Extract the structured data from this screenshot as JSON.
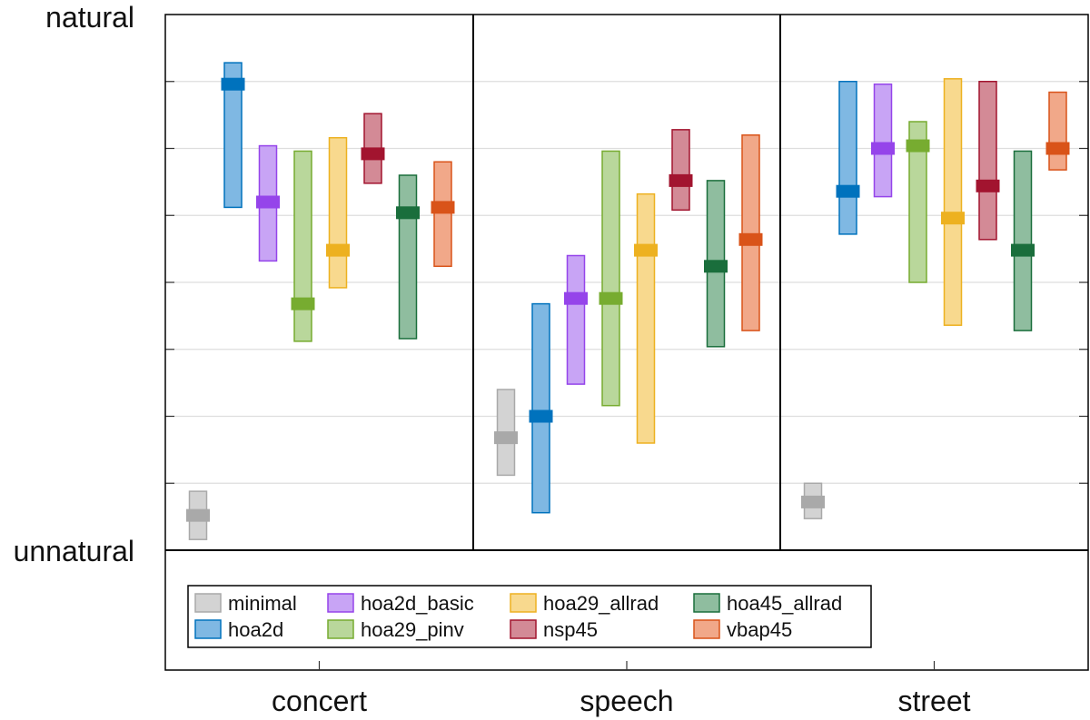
{
  "chart_data": {
    "type": "bar",
    "chart_style": "range-with-median",
    "ylim": [
      0,
      1
    ],
    "ytick_count": 8,
    "y_top_label": "natural",
    "y_bottom_label": "unnatural",
    "categories": [
      "concert",
      "speech",
      "street"
    ],
    "series": [
      {
        "name": "minimal",
        "fill": "#d3d3d3",
        "stroke": "#a9a9a9",
        "median_color": "#a9a9a9",
        "data": [
          {
            "low": 0.02,
            "high": 0.11,
            "median": 0.065
          },
          {
            "low": 0.14,
            "high": 0.3,
            "median": 0.21
          },
          {
            "low": 0.059,
            "high": 0.125,
            "median": 0.09
          }
        ]
      },
      {
        "name": "hoa2d",
        "fill": "#7fb8e3",
        "stroke": "#0072bd",
        "median_color": "#0072bd",
        "data": [
          {
            "low": 0.64,
            "high": 0.91,
            "median": 0.87
          },
          {
            "low": 0.07,
            "high": 0.46,
            "median": 0.25
          },
          {
            "low": 0.59,
            "high": 0.875,
            "median": 0.67
          }
        ]
      },
      {
        "name": "hoa2d_basic",
        "fill": "#c8a4f5",
        "stroke": "#9544ea",
        "median_color": "#9544ea",
        "data": [
          {
            "low": 0.54,
            "high": 0.755,
            "median": 0.65
          },
          {
            "low": 0.31,
            "high": 0.55,
            "median": 0.47
          },
          {
            "low": 0.66,
            "high": 0.87,
            "median": 0.75
          }
        ]
      },
      {
        "name": "hoa29_pinv",
        "fill": "#b9d79b",
        "stroke": "#77ac30",
        "median_color": "#77ac30",
        "data": [
          {
            "low": 0.39,
            "high": 0.745,
            "median": 0.46
          },
          {
            "low": 0.27,
            "high": 0.745,
            "median": 0.47
          },
          {
            "low": 0.5,
            "high": 0.8,
            "median": 0.755
          }
        ]
      },
      {
        "name": "hoa29_allrad",
        "fill": "#f8d98e",
        "stroke": "#edb120",
        "median_color": "#edb120",
        "data": [
          {
            "low": 0.49,
            "high": 0.77,
            "median": 0.56
          },
          {
            "low": 0.2,
            "high": 0.665,
            "median": 0.56
          },
          {
            "low": 0.42,
            "high": 0.88,
            "median": 0.62
          }
        ]
      },
      {
        "name": "nsp45",
        "fill": "#d38a96",
        "stroke": "#a2142f",
        "median_color": "#a2142f",
        "data": [
          {
            "low": 0.685,
            "high": 0.815,
            "median": 0.74
          },
          {
            "low": 0.635,
            "high": 0.785,
            "median": 0.69
          },
          {
            "low": 0.58,
            "high": 0.875,
            "median": 0.68
          }
        ]
      },
      {
        "name": "hoa45_allrad",
        "fill": "#8fbd9f",
        "stroke": "#1a6e3c",
        "median_color": "#1a6e3c",
        "data": [
          {
            "low": 0.395,
            "high": 0.7,
            "median": 0.63
          },
          {
            "low": 0.38,
            "high": 0.69,
            "median": 0.53
          },
          {
            "low": 0.41,
            "high": 0.745,
            "median": 0.56
          }
        ]
      },
      {
        "name": "vbap45",
        "fill": "#f1a889",
        "stroke": "#d95319",
        "median_color": "#d95319",
        "data": [
          {
            "low": 0.53,
            "high": 0.725,
            "median": 0.64
          },
          {
            "low": 0.41,
            "high": 0.775,
            "median": 0.58
          },
          {
            "low": 0.71,
            "high": 0.855,
            "median": 0.75
          }
        ]
      }
    ],
    "legend": {
      "placement": "bottom-left",
      "rows": [
        [
          "minimal",
          "hoa2d_basic",
          "hoa29_allrad",
          "hoa45_allrad"
        ],
        [
          "hoa2d",
          "hoa29_pinv",
          "nsp45",
          "vbap45"
        ]
      ]
    }
  }
}
